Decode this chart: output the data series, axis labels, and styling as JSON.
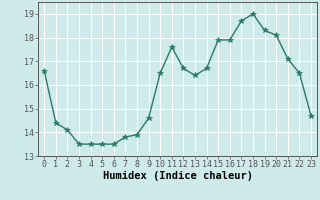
{
  "x": [
    0,
    1,
    2,
    3,
    4,
    5,
    6,
    7,
    8,
    9,
    10,
    11,
    12,
    13,
    14,
    15,
    16,
    17,
    18,
    19,
    20,
    21,
    22,
    23
  ],
  "y": [
    16.6,
    14.4,
    14.1,
    13.5,
    13.5,
    13.5,
    13.5,
    13.8,
    13.9,
    14.6,
    16.5,
    17.6,
    16.7,
    16.4,
    16.7,
    17.9,
    17.9,
    18.7,
    19.0,
    18.3,
    18.1,
    17.1,
    16.5,
    14.7
  ],
  "line_color": "#2a7a6a",
  "marker": "*",
  "marker_size": 4,
  "bg_color": "#ceeaea",
  "grid_color": "#ffffff",
  "xlabel": "Humidex (Indice chaleur)",
  "ylim": [
    13,
    19.5
  ],
  "xlim": [
    -0.5,
    23.5
  ],
  "yticks": [
    13,
    14,
    15,
    16,
    17,
    18,
    19
  ],
  "xticks": [
    0,
    1,
    2,
    3,
    4,
    5,
    6,
    7,
    8,
    9,
    10,
    11,
    12,
    13,
    14,
    15,
    16,
    17,
    18,
    19,
    20,
    21,
    22,
    23
  ],
  "xlabel_fontsize": 7.5,
  "tick_fontsize": 6.0,
  "linewidth": 1.0,
  "spine_color": "#555555"
}
